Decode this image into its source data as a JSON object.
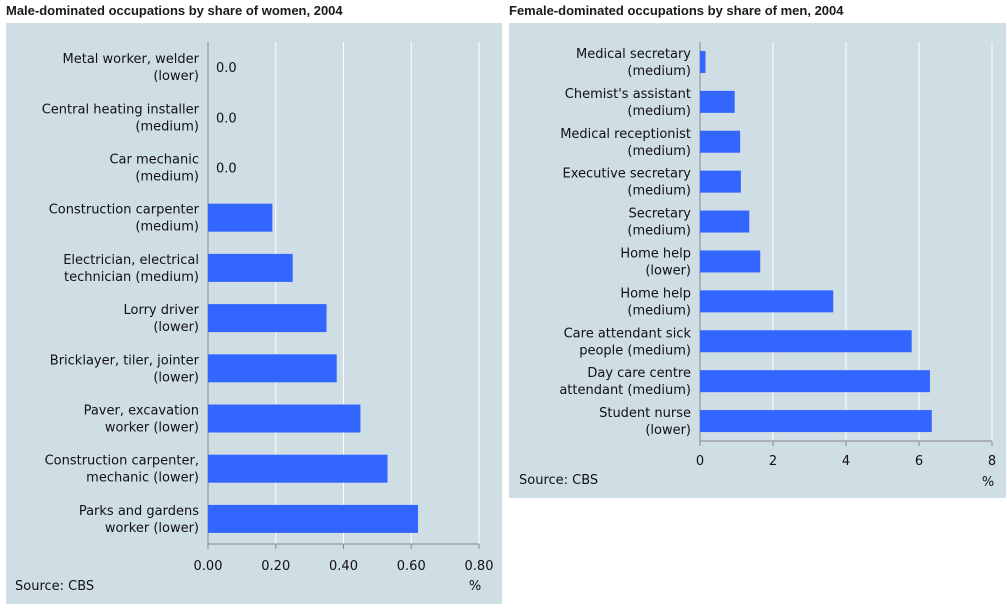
{
  "colors": {
    "bar": "#3366ff",
    "panel": "#cfdde5",
    "grid": "#ffffff",
    "axis": "#888888"
  },
  "chart_data": [
    {
      "type": "bar",
      "orientation": "horizontal",
      "title": "Male-dominated occupations by share of women, 2004",
      "categories": [
        [
          "Metal worker, welder",
          "(lower)"
        ],
        [
          "Central heating installer",
          "(medium)"
        ],
        [
          "Car mechanic",
          "(medium)"
        ],
        [
          "Construction carpenter",
          "(medium)"
        ],
        [
          "Electrician, electrical",
          "technician (medium)"
        ],
        [
          "Lorry driver",
          "(lower)"
        ],
        [
          "Bricklayer, tiler, jointer",
          "(lower)"
        ],
        [
          "Paver, excavation",
          "worker (lower)"
        ],
        [
          "Construction carpenter,",
          "mechanic (lower)"
        ],
        [
          "Parks and gardens",
          "worker (lower)"
        ]
      ],
      "values": [
        0.0,
        0.0,
        0.0,
        0.19,
        0.25,
        0.35,
        0.38,
        0.45,
        0.53,
        0.62
      ],
      "value_labels": [
        "0.0",
        "0.0",
        "0.0",
        null,
        null,
        null,
        null,
        null,
        null,
        null
      ],
      "xlim": [
        0,
        0.8
      ],
      "ticks": [
        "0.00",
        "0.20",
        "0.40",
        "0.60",
        "0.80"
      ],
      "tick_values": [
        0,
        0.2,
        0.4,
        0.6,
        0.8
      ],
      "unit": "%",
      "source": "Source: CBS"
    },
    {
      "type": "bar",
      "orientation": "horizontal",
      "title": "Female-dominated occupations by share of men, 2004",
      "categories": [
        [
          "Medical secretary",
          "(medium)"
        ],
        [
          "Chemist's assistant",
          "(medium)"
        ],
        [
          "Medical receptionist",
          "(medium)"
        ],
        [
          "Executive secretary",
          "(medium)"
        ],
        [
          "Secretary",
          "(medium)"
        ],
        [
          "Home help",
          "(lower)"
        ],
        [
          "Home help",
          "(medium)"
        ],
        [
          "Care attendant sick",
          "people (medium)"
        ],
        [
          "Day care centre",
          "attendant (medium)"
        ],
        [
          "Student nurse",
          "(lower)"
        ]
      ],
      "values": [
        0.15,
        0.95,
        1.1,
        1.12,
        1.35,
        1.65,
        3.65,
        5.8,
        6.3,
        6.35
      ],
      "value_labels": [
        null,
        null,
        null,
        null,
        null,
        null,
        null,
        null,
        null,
        null
      ],
      "xlim": [
        0,
        8
      ],
      "ticks": [
        "0",
        "2",
        "4",
        "6",
        "8"
      ],
      "tick_values": [
        0,
        2,
        4,
        6,
        8
      ],
      "unit": "%",
      "source": "Source: CBS"
    }
  ]
}
